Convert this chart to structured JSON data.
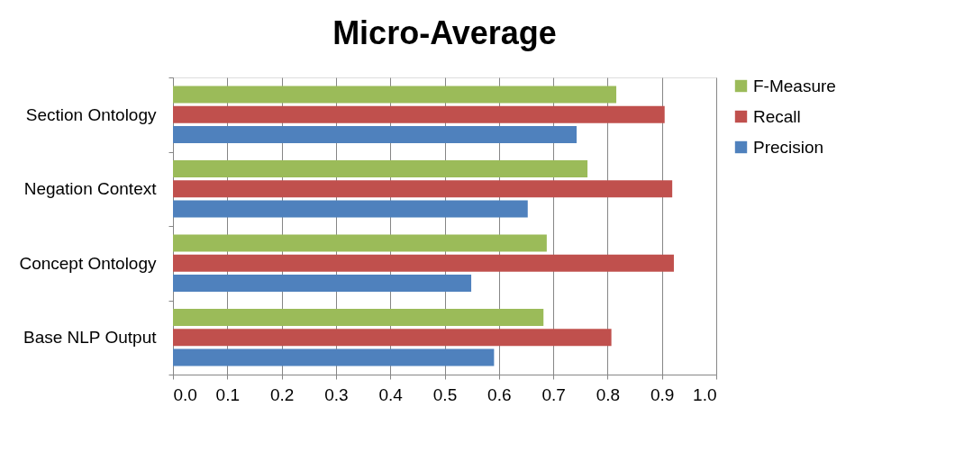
{
  "chart_data": {
    "type": "bar",
    "orientation": "horizontal",
    "title": "Micro-Average",
    "categories": [
      "Section Ontology",
      "Negation Context",
      "Concept Ontology",
      "Base NLP Output"
    ],
    "series": [
      {
        "name": "F-Measure",
        "color": "#9bbb59",
        "values": [
          0.816,
          0.763,
          0.688,
          0.682
        ]
      },
      {
        "name": "Recall",
        "color": "#c0504d",
        "values": [
          0.905,
          0.919,
          0.922,
          0.807
        ]
      },
      {
        "name": "Precision",
        "color": "#4f81bd",
        "values": [
          0.743,
          0.653,
          0.549,
          0.591
        ]
      }
    ],
    "xlim": [
      0,
      1
    ],
    "xticks": [
      {
        "value": 0,
        "label": "0.0"
      },
      {
        "value": 0.1,
        "label": "0.1"
      },
      {
        "value": 0.2,
        "label": "0.2"
      },
      {
        "value": 0.3,
        "label": "0.3"
      },
      {
        "value": 0.4,
        "label": "0.4"
      },
      {
        "value": 0.5,
        "label": "0.5"
      },
      {
        "value": 0.6,
        "label": "0.6"
      },
      {
        "value": 0.7,
        "label": "0.7"
      },
      {
        "value": 0.8,
        "label": "0.8"
      },
      {
        "value": 0.9,
        "label": "0.9"
      },
      {
        "value": 1,
        "label": "1.0"
      }
    ],
    "grid": "x",
    "legend": "right"
  }
}
